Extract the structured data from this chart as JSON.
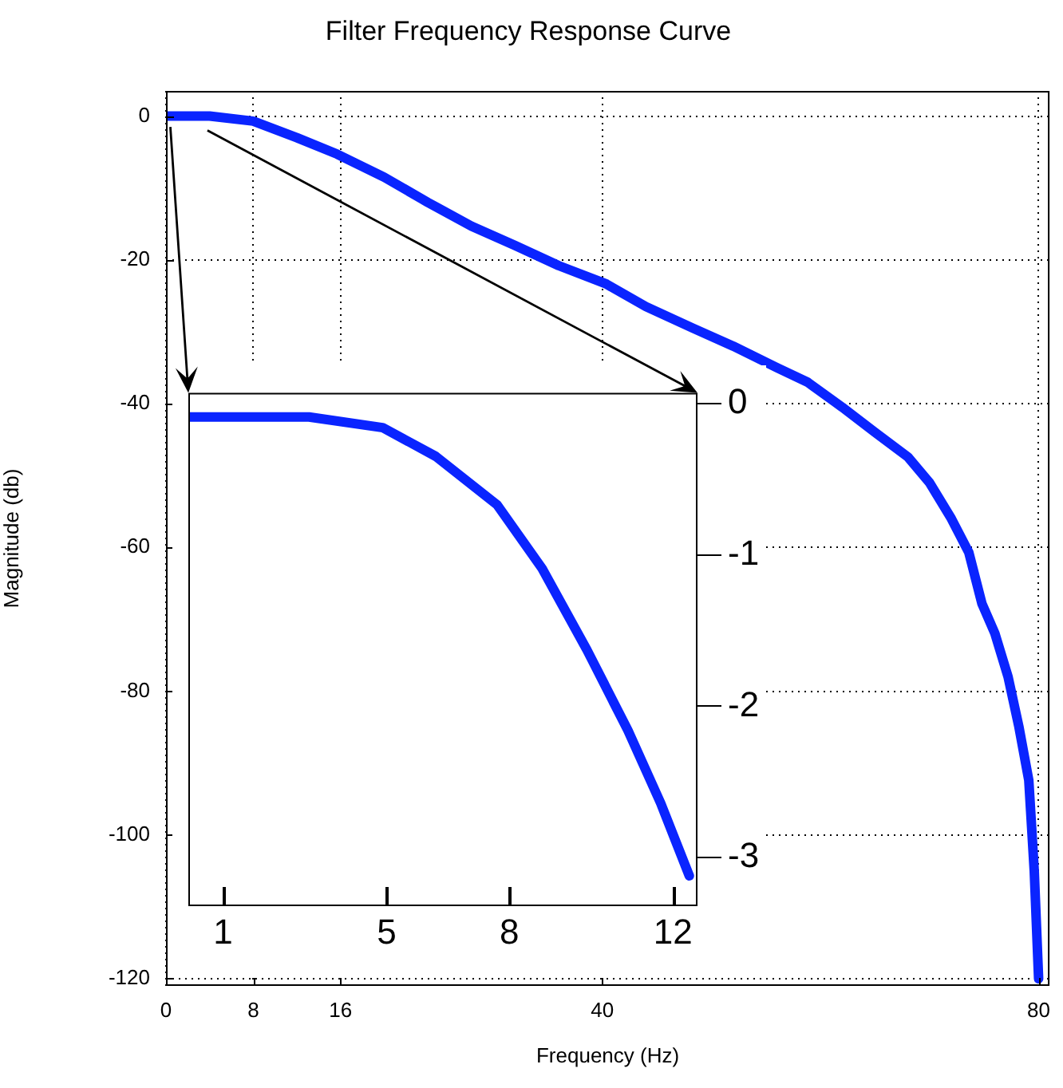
{
  "chart_data": [
    {
      "type": "line",
      "title": "Filter Frequency Response Curve",
      "xlabel": "Frequency (Hz)",
      "ylabel": "Magnitude (db)",
      "x": [
        0,
        4,
        8,
        12,
        15.7,
        20,
        24,
        28,
        32,
        36,
        40.3,
        44,
        48.3,
        52,
        56,
        58.8,
        62,
        65,
        68,
        70,
        72,
        73.6,
        74.8,
        76,
        77.2,
        78.2,
        79.1,
        79.6,
        80
      ],
      "series": [
        {
          "color": "#0a24ff",
          "values": [
            0,
            0,
            -0.7,
            -3,
            -5.3,
            -8.5,
            -12,
            -15.3,
            -18,
            -20.8,
            -23.3,
            -26.5,
            -29.5,
            -32,
            -35,
            -37,
            -40.5,
            -44,
            -47.4,
            -51,
            -56,
            -60.7,
            -67.8,
            -72,
            -78,
            -85,
            -92.4,
            -105,
            -120
          ]
        }
      ],
      "xlim": [
        0,
        81
      ],
      "xticks": [
        0,
        8,
        16,
        40,
        80
      ],
      "ylim": [
        -121,
        3.5
      ],
      "yticks": [
        0,
        -20,
        -40,
        -60,
        -80,
        -100,
        -120
      ],
      "grid": true,
      "marker": "none",
      "line_style": "solid"
    },
    {
      "type": "line",
      "x": [
        0.19,
        1.5,
        3.1,
        4.9,
        6.2,
        7.7,
        8.8,
        9.9,
        10.9,
        11.7,
        12.4
      ],
      "series": [
        {
          "color": "#0a24ff",
          "values": [
            -0.09,
            -0.09,
            -0.09,
            -0.16,
            -0.35,
            -0.67,
            -1.09,
            -1.63,
            -2.16,
            -2.64,
            -3.12
          ]
        }
      ],
      "xlim": [
        0.15,
        12.6
      ],
      "xticks": [
        1,
        5,
        8,
        12
      ],
      "ylim": [
        -3.32,
        0.07
      ],
      "yticks": [
        0,
        -1,
        -2,
        -3
      ],
      "marker": "none",
      "line_style": "solid"
    }
  ]
}
